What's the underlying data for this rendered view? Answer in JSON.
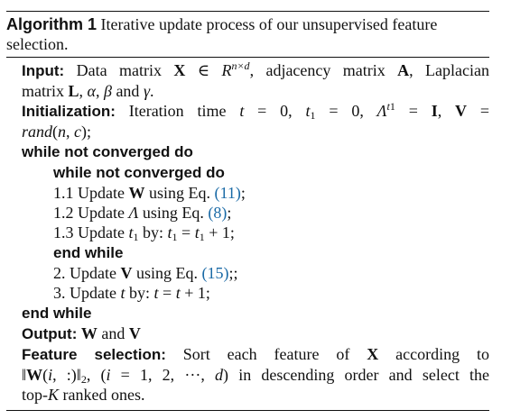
{
  "caption": {
    "label": "Algorithm 1",
    "text": "Iterative update process of our unsupervised feature selection."
  },
  "lines": {
    "input_kw": "Input:",
    "init_kw": "Initialization:",
    "while_outer": "while not converged do",
    "while_inner": "while not converged do",
    "step11_pre": "1.1 Update ",
    "step11_ref": "(11)",
    "step12_pre": "1.2 Update ",
    "step12_ref": "(8)",
    "step13_pre": "1.3 Update ",
    "end_inner": "end while",
    "step2_pre": "2. Update ",
    "step2_ref": "(15)",
    "step3_pre": "3. Update ",
    "end_outer": "end while",
    "output_kw": "Output:",
    "feature_kw": "Feature selection:"
  },
  "colors": {
    "reference_link": "#1a6aa6"
  }
}
